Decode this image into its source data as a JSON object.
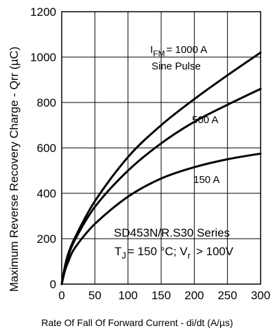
{
  "chart_data": {
    "type": "line",
    "title": "",
    "xlabel": "Rate Of Fall Of Forward Current - di/dt (A/µs)",
    "ylabel": "Maximum Reverse Recovery Charge - Qrr (µC)",
    "xlim": [
      0,
      300
    ],
    "ylim": [
      0,
      1200
    ],
    "grid": true,
    "xticks": [
      0,
      50,
      100,
      150,
      200,
      250,
      300
    ],
    "yticks": [
      0,
      200,
      400,
      600,
      800,
      1000,
      1200
    ],
    "series": [
      {
        "name": "1000 A",
        "x": [
          0,
          5,
          10,
          20,
          50,
          100,
          150,
          200,
          250,
          300
        ],
        "y": [
          0,
          80,
          135,
          205,
          365,
          560,
          700,
          815,
          920,
          1020
        ]
      },
      {
        "name": "500 A",
        "x": [
          0,
          5,
          10,
          20,
          50,
          100,
          150,
          200,
          250,
          300
        ],
        "y": [
          0,
          75,
          125,
          195,
          340,
          500,
          620,
          715,
          790,
          860
        ]
      },
      {
        "name": "150 A",
        "x": [
          0,
          5,
          10,
          20,
          50,
          100,
          150,
          200,
          250,
          300
        ],
        "y": [
          0,
          60,
          100,
          160,
          265,
          385,
          465,
          515,
          550,
          575
        ]
      }
    ],
    "annotations": {
      "ifm_prefix": "I",
      "ifm_sub": "FM",
      "ifm_value": "= 1000 A",
      "waveform": "Sine Pulse",
      "label_500": "500 A",
      "label_150": "150 A",
      "series_name": "SD453N/R.S30 Series",
      "cond_t": "T",
      "cond_t_sub": "J",
      "cond_t_val": "= 150 °C; V",
      "cond_v_sub": "r",
      "cond_v_val": "> 100V"
    }
  }
}
